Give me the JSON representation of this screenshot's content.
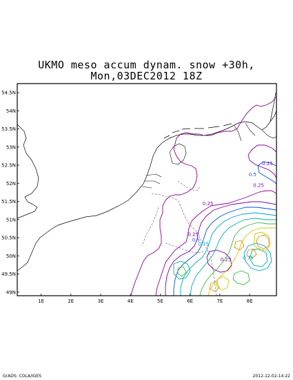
{
  "title": {
    "line1": "UKMO meso accum dynam. snow +30h,",
    "line2": "Mon,03DEC2012 18Z"
  },
  "axes": {
    "lat_labels": [
      "54.5N",
      "54N",
      "53.5N",
      "53N",
      "52.5N",
      "52N",
      "51.5N",
      "51N",
      "50.5N",
      "50N",
      "49.5N",
      "49N"
    ],
    "lon_labels": [
      "1E",
      "2E",
      "3E",
      "4E",
      "5E",
      "6E",
      "7E",
      "8E"
    ],
    "lon_range": [
      0.2,
      8.9
    ],
    "lat_range": [
      48.9,
      54.75
    ]
  },
  "contour_labels": [
    {
      "text": "0.25",
      "lon": 8.6,
      "lat": 52.5
    },
    {
      "text": "0.5",
      "lon": 8.1,
      "lat": 52.2
    },
    {
      "text": "0.25",
      "lon": 8.3,
      "lat": 51.9
    },
    {
      "text": "0.25",
      "lon": 6.6,
      "lat": 51.4
    },
    {
      "text": "0.25",
      "lon": 6.1,
      "lat": 50.55
    },
    {
      "text": "0.5",
      "lon": 6.2,
      "lat": 50.4
    },
    {
      "text": "0.75",
      "lon": 6.45,
      "lat": 50.28
    },
    {
      "text": "0.25",
      "lon": 7.2,
      "lat": 49.85
    },
    {
      "text": "0.75",
      "lon": 7.95,
      "lat": 49.9
    }
  ],
  "footer": {
    "left": "GrADS: COLA/IGES",
    "right": "2012-12-02-14:22"
  },
  "colors": {
    "coast": "#000000",
    "border": "#8a008a",
    "c025": "#7b00a8",
    "c05": "#0050d8",
    "c075": "#00a0d0",
    "c1": "#00b0a0",
    "c15": "#40b840",
    "c2": "#c8c800",
    "c3": "#e09000"
  }
}
